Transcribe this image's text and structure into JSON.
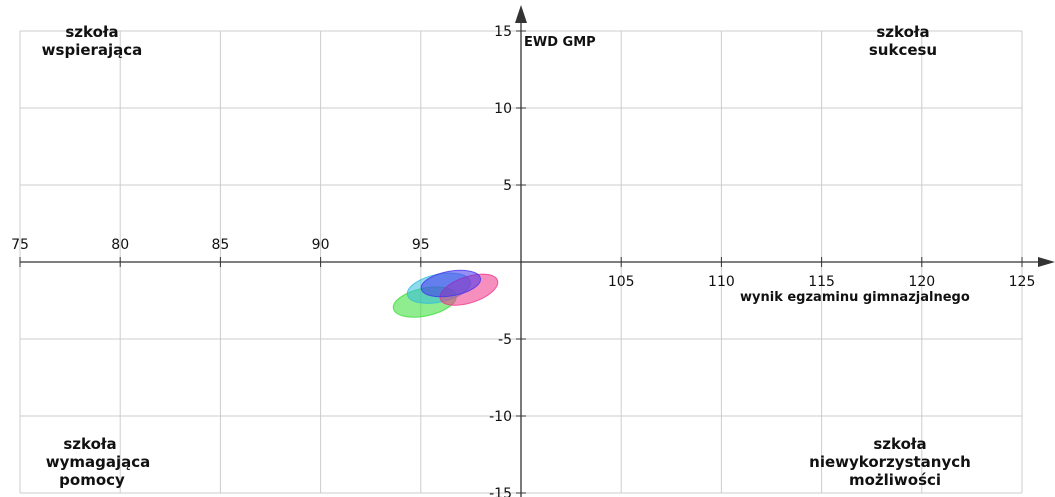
{
  "chart_data": {
    "type": "scatter",
    "xlabel": "wynik egzaminu gimnazjalnego",
    "ylabel": "EWD GMP",
    "xlim": [
      75,
      125
    ],
    "ylim": [
      -15,
      15
    ],
    "x_center": 100,
    "y_center": 0,
    "x_ticks": [
      75,
      80,
      85,
      90,
      95,
      105,
      110,
      115,
      120,
      125
    ],
    "y_ticks": [
      15,
      10,
      5,
      -5,
      -10,
      -15
    ],
    "grid": true,
    "quadrant_labels": {
      "top_left": [
        "szkoła",
        "wspierająca"
      ],
      "top_right": [
        "szkoła",
        "sukcesu"
      ],
      "bottom_left": [
        "szkoła",
        "wymagająca",
        "pomocy"
      ],
      "bottom_right": [
        "szkoła",
        "niewykorzystanych",
        "możliwości"
      ]
    },
    "series": [
      {
        "color": "#33dd33",
        "x": 95.2,
        "y": -2.6,
        "rx": 1.6,
        "ry": 0.9,
        "angle": -12
      },
      {
        "color": "#33bbdd",
        "x": 95.9,
        "y": -1.7,
        "rx": 1.6,
        "ry": 0.9,
        "angle": -12
      },
      {
        "color": "#ee3388",
        "x": 97.4,
        "y": -1.8,
        "rx": 1.5,
        "ry": 0.85,
        "angle": -18
      },
      {
        "color": "#4433ee",
        "x": 96.5,
        "y": -1.4,
        "rx": 1.5,
        "ry": 0.8,
        "angle": -10
      }
    ]
  }
}
